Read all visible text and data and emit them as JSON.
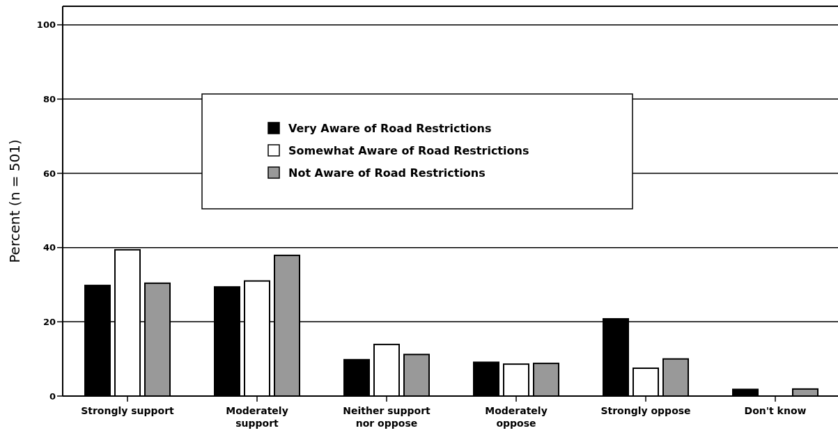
{
  "chart_data": {
    "type": "bar",
    "ylabel": "Percent (n = 501)",
    "categories": [
      "Strongly support",
      "Moderately support",
      "Neither support nor oppose",
      "Moderately oppose",
      "Strongly oppose",
      "Don't know"
    ],
    "series": [
      {
        "name": "Very Aware of Road Restrictions",
        "color": "#000000",
        "values": [
          29.8,
          29.4,
          9.8,
          9.1,
          20.8,
          1.8
        ]
      },
      {
        "name": "Somewhat Aware of Road Restrictions",
        "color": "#ffffff",
        "values": [
          39.4,
          31.0,
          13.9,
          8.6,
          7.5,
          0
        ]
      },
      {
        "name": "Not Aware of Road Restrictions",
        "color": "#999999",
        "values": [
          30.4,
          37.9,
          11.2,
          8.8,
          10.0,
          1.9
        ]
      }
    ],
    "ylim": [
      0,
      105
    ],
    "yticks": [
      0,
      20,
      40,
      60,
      80,
      100
    ],
    "grid": "y",
    "legend": "top"
  }
}
